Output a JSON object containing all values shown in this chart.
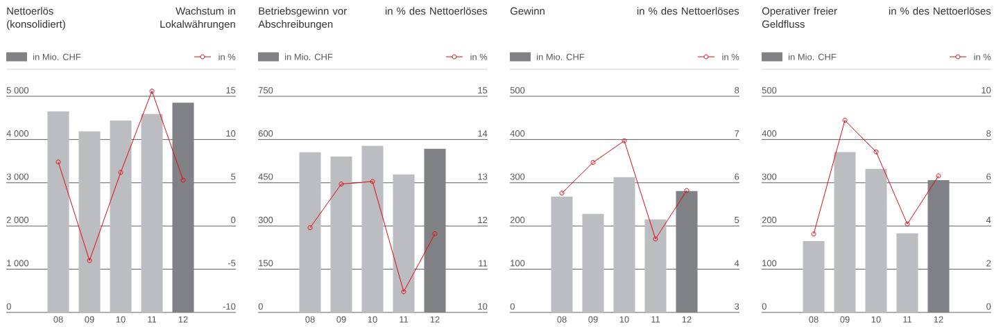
{
  "chart_data": [
    {
      "type": "bar",
      "ylabel": "Nettoerlös (konsolidiert)",
      "y2label": "Wachstum in Lokalwährungen",
      "categories": [
        "08",
        "09",
        "10",
        "11",
        "12"
      ],
      "grid": "y",
      "legend": "top",
      "marker": "circle",
      "ylim": [
        0,
        5625
      ],
      "yticks": [
        0,
        {
          "value": 1000,
          "label": "1 000"
        },
        {
          "value": 2000,
          "label": "2 000"
        },
        {
          "value": 3000,
          "label": "3 000"
        },
        {
          "value": 4000,
          "label": "4 000"
        },
        {
          "value": 5000,
          "label": "5 000"
        }
      ],
      "y2lim": [
        -10,
        18.125
      ],
      "y2ticks": [
        -10,
        -5,
        0,
        5,
        10,
        15
      ],
      "series": [
        {
          "name": "in Mio. CHF",
          "color": "#808184",
          "colors": [
            "#bcbdc0",
            "#bcbdc0",
            "#bcbdc0",
            "#bcbdc0",
            "#808184"
          ],
          "values": [
            4650,
            4190,
            4440,
            4590,
            4850
          ]
        },
        {
          "name": "in %",
          "type": "line",
          "axis": "y2",
          "color": "#e30613",
          "values": [
            7.4,
            -4.0,
            6.2,
            15.6,
            5.3
          ]
        }
      ]
    },
    {
      "type": "bar",
      "ylabel": "Betriebsgewinn vor Abschreibungen",
      "y2label": "in % des Nettoerlöses",
      "categories": [
        "08",
        "09",
        "10",
        "11",
        "12"
      ],
      "grid": "y",
      "legend": "top",
      "marker": "circle",
      "ylim": [
        0,
        843.75
      ],
      "yticks": [
        0,
        150,
        300,
        450,
        600,
        750
      ],
      "y2lim": [
        10,
        15.625
      ],
      "y2ticks": [
        10,
        11,
        12,
        13,
        14,
        15
      ],
      "series": [
        {
          "name": "in Mio. CHF",
          "color": "#808184",
          "colors": [
            "#bcbdc0",
            "#bcbdc0",
            "#bcbdc0",
            "#bcbdc0",
            "#808184"
          ],
          "values": [
            556,
            541,
            578,
            479,
            568
          ]
        },
        {
          "name": "in %",
          "type": "line",
          "axis": "y2",
          "color": "#e30613",
          "values": [
            11.96,
            12.97,
            13.03,
            10.48,
            11.82
          ]
        }
      ]
    },
    {
      "type": "bar",
      "ylabel": "Gewinn",
      "y2label": "in % des Nettoerlöses",
      "categories": [
        "08",
        "09",
        "10",
        "11",
        "12"
      ],
      "grid": "y",
      "legend": "top",
      "marker": "circle",
      "ylim": [
        0,
        562.5
      ],
      "yticks": [
        0,
        100,
        200,
        300,
        400,
        500
      ],
      "y2lim": [
        3,
        8.625
      ],
      "y2ticks": [
        3,
        4,
        5,
        6,
        7,
        8
      ],
      "series": [
        {
          "name": "in Mio. CHF",
          "color": "#808184",
          "colors": [
            "#bcbdc0",
            "#bcbdc0",
            "#bcbdc0",
            "#bcbdc0",
            "#808184"
          ],
          "values": [
            268,
            228,
            313,
            215,
            281
          ]
        },
        {
          "name": "in %",
          "type": "line",
          "axis": "y2",
          "color": "#e30613",
          "values": [
            5.76,
            6.47,
            6.97,
            4.7,
            5.82
          ]
        }
      ]
    },
    {
      "type": "bar",
      "ylabel": "Operativer freier Geldfluss",
      "y2label": "in % des Nettoerlöses",
      "categories": [
        "08",
        "09",
        "10",
        "11",
        "12"
      ],
      "grid": "y",
      "legend": "top",
      "marker": "circle",
      "ylim": [
        0,
        562.5
      ],
      "yticks": [
        0,
        100,
        200,
        300,
        400,
        500
      ],
      "y2lim": [
        0,
        11.25
      ],
      "y2ticks": [
        0,
        2,
        4,
        6,
        8,
        10
      ],
      "series": [
        {
          "name": "in Mio. CHF",
          "color": "#808184",
          "colors": [
            "#bcbdc0",
            "#bcbdc0",
            "#bcbdc0",
            "#bcbdc0",
            "#808184"
          ],
          "values": [
            165,
            371,
            332,
            183,
            306
          ]
        },
        {
          "name": "in %",
          "type": "line",
          "axis": "y2",
          "color": "#e30613",
          "values": [
            3.63,
            8.89,
            7.43,
            4.09,
            6.32
          ]
        }
      ]
    }
  ]
}
